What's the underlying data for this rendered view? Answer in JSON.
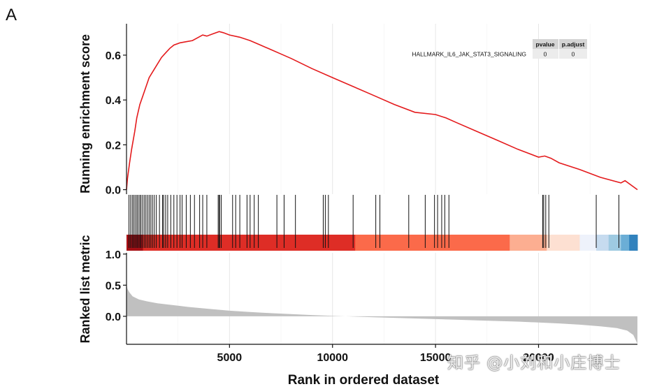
{
  "panel_label": "A",
  "watermark": "知乎 @小刘和小庄博士",
  "colors": {
    "es_line": "#e41a1c",
    "hit_line": "#111111",
    "metric_fill": "#c0c0c0",
    "grid": "#e6e6e6",
    "heat": [
      "#a50f15",
      "#de2d26",
      "#fb6a4a",
      "#fcae91",
      "#fde0d2",
      "#eef2fb",
      "#c6dbef",
      "#9ecae1",
      "#6baed6",
      "#3182bd"
    ]
  },
  "chart_data": {
    "type": "gsea",
    "x_label": "Rank in ordered dataset",
    "x_range": [
      1,
      24800
    ],
    "x_ticks": [
      5000,
      10000,
      15000,
      20000
    ],
    "x_tick_labels": [
      "5000",
      "10000",
      "15000",
      "20000"
    ],
    "es_panel": {
      "ylabel": "Running enrichment score",
      "ylim": [
        -0.02,
        0.74
      ],
      "y_ticks": [
        0.0,
        0.2,
        0.4,
        0.6
      ],
      "y_tick_labels": [
        "0.0",
        "0.2",
        "0.4",
        "0.6"
      ],
      "gene_set": "HALLMARK_IL6_JAK_STAT3_SIGNALING",
      "curve_x": [
        0,
        50,
        150,
        250,
        400,
        500,
        650,
        800,
        950,
        1100,
        1300,
        1500,
        1700,
        1900,
        2100,
        2300,
        2600,
        2900,
        3200,
        3500,
        3700,
        3900,
        4200,
        4500,
        4700,
        5000,
        5500,
        6000,
        6500,
        7000,
        7500,
        8000,
        9000,
        10000,
        11000,
        12000,
        13000,
        14000,
        15000,
        15500,
        16000,
        17000,
        18000,
        19000,
        20000,
        20300,
        20600,
        21000,
        22000,
        23000,
        24000,
        24200,
        24800
      ],
      "curve_y": [
        0.0,
        0.05,
        0.12,
        0.18,
        0.26,
        0.32,
        0.38,
        0.42,
        0.46,
        0.5,
        0.53,
        0.56,
        0.59,
        0.61,
        0.63,
        0.645,
        0.655,
        0.66,
        0.665,
        0.68,
        0.69,
        0.685,
        0.695,
        0.705,
        0.7,
        0.69,
        0.68,
        0.665,
        0.645,
        0.625,
        0.605,
        0.585,
        0.54,
        0.5,
        0.46,
        0.42,
        0.38,
        0.345,
        0.335,
        0.32,
        0.3,
        0.26,
        0.22,
        0.18,
        0.145,
        0.15,
        0.14,
        0.12,
        0.09,
        0.055,
        0.03,
        0.04,
        0.0
      ]
    },
    "hits": [
      120,
      200,
      280,
      350,
      420,
      500,
      560,
      640,
      700,
      780,
      860,
      940,
      1020,
      1100,
      1180,
      1260,
      1350,
      1450,
      1600,
      1750,
      1800,
      1900,
      2000,
      2150,
      2300,
      2450,
      2600,
      2700,
      2900,
      3100,
      3300,
      3550,
      3700,
      3900,
      4450,
      4500,
      4520,
      4600,
      5150,
      5300,
      5500,
      5850,
      6000,
      6200,
      6400,
      7300,
      7650,
      8200,
      9550,
      9650,
      9800,
      11000,
      12100,
      12300,
      13700,
      14500,
      14950,
      15100,
      15300,
      15450,
      15650,
      20200,
      20250,
      20350,
      20500,
      22800,
      23900
    ],
    "heatmap_breaks": [
      0,
      800,
      11100,
      18600,
      20400,
      22000,
      22800,
      23400,
      24000,
      24400,
      24800
    ],
    "table": {
      "headers": [
        "pvalue",
        "p.adjust"
      ],
      "row_label": "HALLMARK_IL6_JAK_STAT3_SIGNALING",
      "values": [
        "0",
        "0"
      ]
    },
    "metric_panel": {
      "ylabel": "Ranked list metric",
      "ylim": [
        -0.45,
        1.02
      ],
      "y_ticks": [
        0.0,
        0.5,
        1.0
      ],
      "y_tick_labels": [
        "0.0",
        "0.5",
        "1.0"
      ],
      "curve_x": [
        0,
        50,
        150,
        300,
        600,
        1000,
        1500,
        2000,
        3000,
        4000,
        5000,
        6000,
        7000,
        8000,
        9000,
        10000,
        11000,
        12000,
        13000,
        14000,
        15000,
        16000,
        17000,
        18000,
        19000,
        20000,
        21000,
        22000,
        23000,
        23800,
        24300,
        24600,
        24800
      ],
      "curve_y": [
        0.52,
        0.44,
        0.38,
        0.32,
        0.27,
        0.24,
        0.21,
        0.19,
        0.15,
        0.12,
        0.09,
        0.07,
        0.05,
        0.035,
        0.02,
        0.008,
        -0.005,
        -0.015,
        -0.025,
        -0.035,
        -0.045,
        -0.055,
        -0.065,
        -0.075,
        -0.085,
        -0.1,
        -0.115,
        -0.135,
        -0.16,
        -0.19,
        -0.23,
        -0.3,
        -0.44
      ]
    }
  }
}
